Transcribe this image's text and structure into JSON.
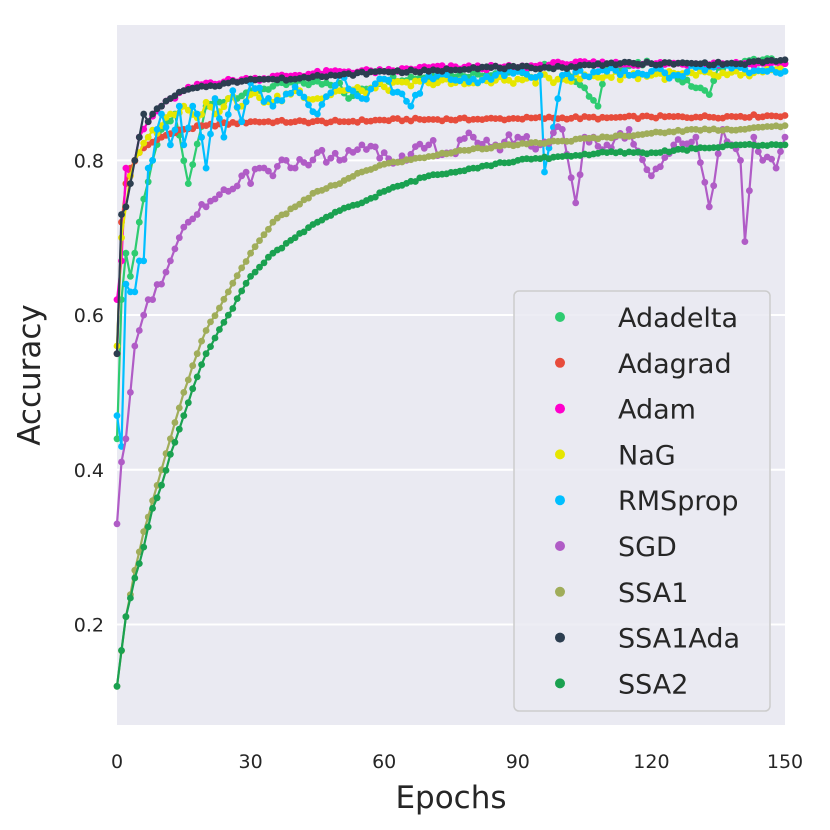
{
  "chart_data": {
    "type": "line",
    "xlabel": "Epochs",
    "ylabel": "Accuracy",
    "xlim": [
      0,
      150
    ],
    "ylim": [
      0.07,
      0.975
    ],
    "xticks": [
      0,
      30,
      60,
      90,
      120,
      150
    ],
    "yticks": [
      0.2,
      0.4,
      0.6,
      0.8
    ],
    "xtick_labels": [
      "0",
      "30",
      "60",
      "90",
      "120",
      "150"
    ],
    "ytick_labels": [
      "0.2",
      "0.4",
      "0.6",
      "0.8"
    ],
    "grid": true,
    "legend_position": "lower-right",
    "series": [
      {
        "name": "Adadelta",
        "color": "#2ecc71",
        "x": [
          0,
          1,
          2,
          3,
          4,
          5,
          6,
          8,
          10,
          13,
          16,
          20,
          25,
          30,
          40,
          50,
          52,
          60,
          75,
          90,
          100,
          108,
          110,
          120,
          133,
          135,
          145,
          150
        ],
        "y": [
          0.44,
          0.62,
          0.68,
          0.65,
          0.68,
          0.72,
          0.75,
          0.8,
          0.84,
          0.86,
          0.77,
          0.87,
          0.88,
          0.89,
          0.9,
          0.9,
          0.88,
          0.905,
          0.91,
          0.915,
          0.925,
          0.87,
          0.92,
          0.925,
          0.885,
          0.92,
          0.93,
          0.925
        ]
      },
      {
        "name": "Adagrad",
        "color": "#e74c3c",
        "x": [
          0,
          1,
          2,
          3,
          5,
          7,
          10,
          15,
          20,
          30,
          40,
          50,
          60,
          70,
          80,
          90,
          100,
          110,
          120,
          130,
          140,
          150
        ],
        "y": [
          0.55,
          0.72,
          0.77,
          0.79,
          0.81,
          0.82,
          0.83,
          0.84,
          0.845,
          0.85,
          0.85,
          0.85,
          0.852,
          0.853,
          0.853,
          0.854,
          0.855,
          0.855,
          0.856,
          0.856,
          0.857,
          0.858
        ]
      },
      {
        "name": "Adam",
        "color": "#ff00cc",
        "x": [
          0,
          1,
          2,
          3,
          4,
          5,
          7,
          10,
          15,
          20,
          30,
          40,
          50,
          60,
          70,
          80,
          90,
          100,
          110,
          120,
          130,
          140,
          150
        ],
        "y": [
          0.62,
          0.67,
          0.79,
          0.78,
          0.8,
          0.83,
          0.85,
          0.87,
          0.89,
          0.9,
          0.905,
          0.91,
          0.915,
          0.915,
          0.92,
          0.92,
          0.92,
          0.925,
          0.925,
          0.925,
          0.925,
          0.925,
          0.925
        ]
      },
      {
        "name": "NaG",
        "color": "#e6e600",
        "x": [
          0,
          1,
          2,
          3,
          4,
          5,
          7,
          10,
          12,
          15,
          18,
          20,
          22,
          25,
          28,
          30,
          35,
          40,
          45,
          50,
          55,
          60,
          70,
          80,
          90,
          100,
          110,
          120,
          130,
          140,
          150
        ],
        "y": [
          0.56,
          0.7,
          0.74,
          0.78,
          0.8,
          0.81,
          0.83,
          0.845,
          0.86,
          0.87,
          0.855,
          0.875,
          0.86,
          0.88,
          0.87,
          0.885,
          0.875,
          0.89,
          0.88,
          0.89,
          0.89,
          0.895,
          0.9,
          0.9,
          0.905,
          0.905,
          0.91,
          0.91,
          0.91,
          0.91,
          0.915
        ]
      },
      {
        "name": "RMSprop",
        "color": "#00bfff",
        "x": [
          0,
          1,
          2,
          3,
          4,
          5,
          6,
          7,
          8,
          9,
          10,
          12,
          14,
          15,
          17,
          18,
          20,
          22,
          24,
          26,
          28,
          30,
          35,
          40,
          45,
          50,
          55,
          60,
          66,
          70,
          80,
          85,
          90,
          95,
          96,
          100,
          110,
          115,
          120,
          125,
          130,
          140,
          146,
          150
        ],
        "y": [
          0.47,
          0.43,
          0.64,
          0.63,
          0.63,
          0.67,
          0.67,
          0.79,
          0.8,
          0.84,
          0.86,
          0.82,
          0.87,
          0.82,
          0.87,
          0.86,
          0.79,
          0.88,
          0.83,
          0.89,
          0.85,
          0.9,
          0.87,
          0.895,
          0.86,
          0.91,
          0.88,
          0.905,
          0.87,
          0.91,
          0.905,
          0.91,
          0.915,
          0.91,
          0.785,
          0.91,
          0.915,
          0.91,
          0.915,
          0.91,
          0.92,
          0.92,
          0.915,
          0.915
        ]
      },
      {
        "name": "SGD",
        "color": "#b05cc6",
        "x": [
          0,
          1,
          2,
          3,
          4,
          5,
          6,
          7,
          8,
          10,
          12,
          14,
          16,
          18,
          20,
          22,
          25,
          28,
          30,
          32,
          35,
          38,
          40,
          45,
          50,
          55,
          60,
          65,
          70,
          75,
          80,
          85,
          90,
          95,
          100,
          103,
          105,
          110,
          115,
          120,
          125,
          130,
          133,
          136,
          140,
          141,
          143,
          145,
          148,
          150
        ],
        "y": [
          0.33,
          0.41,
          0.44,
          0.5,
          0.56,
          0.58,
          0.6,
          0.62,
          0.62,
          0.64,
          0.67,
          0.7,
          0.72,
          0.73,
          0.74,
          0.75,
          0.76,
          0.78,
          0.77,
          0.79,
          0.78,
          0.8,
          0.79,
          0.81,
          0.8,
          0.82,
          0.81,
          0.8,
          0.82,
          0.81,
          0.83,
          0.82,
          0.83,
          0.82,
          0.84,
          0.745,
          0.83,
          0.82,
          0.84,
          0.78,
          0.82,
          0.83,
          0.74,
          0.84,
          0.8,
          0.695,
          0.83,
          0.8,
          0.79,
          0.83
        ]
      },
      {
        "name": "SSA1",
        "color": "#a0ad5a",
        "x": [
          0,
          2,
          4,
          6,
          8,
          10,
          12,
          15,
          18,
          20,
          25,
          30,
          35,
          40,
          45,
          50,
          55,
          60,
          70,
          80,
          90,
          100,
          110,
          120,
          130,
          140,
          150
        ],
        "y": [
          0.12,
          0.21,
          0.27,
          0.32,
          0.36,
          0.4,
          0.44,
          0.5,
          0.55,
          0.58,
          0.63,
          0.68,
          0.72,
          0.74,
          0.76,
          0.77,
          0.785,
          0.795,
          0.805,
          0.815,
          0.82,
          0.825,
          0.83,
          0.835,
          0.84,
          0.84,
          0.845
        ]
      },
      {
        "name": "SSA1Ada",
        "color": "#2c3e50",
        "x": [
          0,
          1,
          2,
          3,
          4,
          5,
          6,
          7,
          8,
          10,
          12,
          15,
          20,
          25,
          30,
          35,
          40,
          45,
          50,
          60,
          70,
          80,
          90,
          100,
          110,
          120,
          130,
          140,
          150
        ],
        "y": [
          0.55,
          0.73,
          0.74,
          0.77,
          0.8,
          0.83,
          0.86,
          0.85,
          0.86,
          0.87,
          0.88,
          0.89,
          0.895,
          0.9,
          0.905,
          0.905,
          0.905,
          0.91,
          0.91,
          0.915,
          0.915,
          0.92,
          0.92,
          0.92,
          0.925,
          0.925,
          0.925,
          0.925,
          0.93
        ]
      },
      {
        "name": "SSA2",
        "color": "#1aa150",
        "x": [
          0,
          2,
          4,
          6,
          8,
          10,
          12,
          15,
          18,
          20,
          25,
          30,
          35,
          40,
          45,
          50,
          55,
          60,
          70,
          80,
          90,
          100,
          110,
          120,
          130,
          140,
          150
        ],
        "y": [
          0.12,
          0.21,
          0.26,
          0.3,
          0.35,
          0.38,
          0.42,
          0.47,
          0.52,
          0.55,
          0.6,
          0.65,
          0.68,
          0.7,
          0.72,
          0.735,
          0.745,
          0.76,
          0.78,
          0.79,
          0.8,
          0.805,
          0.81,
          0.81,
          0.815,
          0.82,
          0.82
        ]
      }
    ]
  }
}
